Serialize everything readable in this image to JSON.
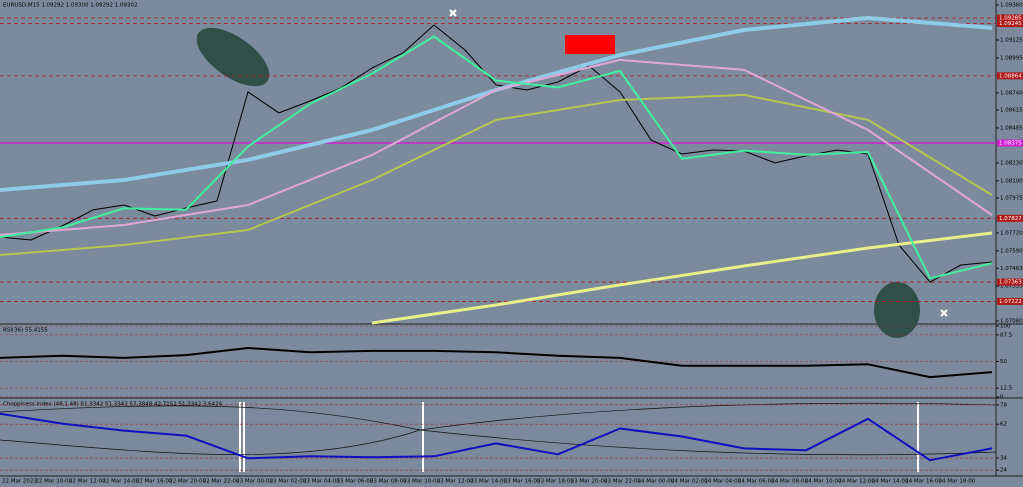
{
  "header": {
    "main": "EURUSD,M15 1.09292 1.09300 1.09292 1.09302",
    "rsi": "RSI(36) 55.4155",
    "chop": "Choppiness Index (48,1.48) 51.3342 51.3342 57.3848 42.7152 51.3342 3.6424"
  },
  "time_axis": [
    "22 Mar 2023",
    "22 Mar 10:00",
    "22 Mar 12:00",
    "22 Mar 14:00",
    "22 Mar 16:00",
    "22 Mar 20:00",
    "22 Mar 22:00",
    "23 Mar 00:00",
    "23 Mar 02:00",
    "23 Mar 04:00",
    "23 Mar 06:00",
    "23 Mar 08:00",
    "23 Mar 10:00",
    "23 Mar 12:00",
    "23 Mar 14:00",
    "23 Mar 16:00",
    "23 Mar 18:00",
    "23 Mar 20:00",
    "23 Mar 22:00",
    "24 Mar 00:00",
    "24 Mar 02:00",
    "24 Mar 04:00",
    "24 Mar 06:00",
    "24 Mar 08:00",
    "24 Mar 10:00",
    "24 Mar 12:00",
    "24 Mar 14:00",
    "24 Mar 16:00",
    "24 Mar 18:00"
  ],
  "chart_data": [
    {
      "type": "line",
      "ylim": [
        1.07065,
        1.09416
      ],
      "yticks": [
        {
          "value": 1.0938,
          "label": "1.09380"
        },
        {
          "value": 1.09125,
          "label": "1.09125"
        },
        {
          "value": 1.08995,
          "label": "1.08995"
        },
        {
          "value": 1.0874,
          "label": "1.08740"
        },
        {
          "value": 1.08615,
          "label": "1.08615"
        },
        {
          "value": 1.08485,
          "label": "1.08485"
        },
        {
          "value": 1.0823,
          "label": "1.08230"
        },
        {
          "value": 1.081,
          "label": "1.08100"
        },
        {
          "value": 1.07975,
          "label": "1.07975"
        },
        {
          "value": 1.0772,
          "label": "1.07720"
        },
        {
          "value": 1.0759,
          "label": "1.07590"
        },
        1.07463,
        1.07333,
        {
          "value": 1.0708,
          "label": "1.07080"
        }
      ],
      "levels": [
        {
          "value": 1.09285,
          "label": "1.09285",
          "color": "#b01818"
        },
        {
          "value": 1.09245,
          "label": "1.09245",
          "color": "#b01818"
        },
        {
          "value": 1.08864,
          "label": "1.08864",
          "color": "#b01818"
        },
        {
          "value": 1.08375,
          "label": "1.08375",
          "color": "#d020d0"
        },
        {
          "value": 1.07827,
          "label": "1.07827",
          "color": "#b01818"
        },
        {
          "value": 1.07363,
          "label": "1.07363",
          "color": "#b01818"
        },
        {
          "value": 1.07222,
          "label": "1.07222",
          "color": "#b01818"
        }
      ],
      "series": [
        {
          "color": "#000000",
          "width": 1,
          "values": [
            1.07691,
            1.07669,
            1.07771,
            1.07888,
            1.07924,
            1.07844,
            1.07902,
            1.07953,
            1.08747,
            1.08594,
            1.08681,
            1.08776,
            1.08921,
            1.09031,
            1.09234,
            1.09052,
            1.08798,
            1.08761,
            1.08819,
            1.08936,
            1.08747,
            1.08397,
            1.08295,
            1.08324,
            1.08317,
            1.0823,
            1.08281,
            1.08324,
            1.08295,
            1.07633,
            1.07363,
            1.07487,
            1.07509
          ]
        },
        {
          "color": "#8ecbe8",
          "width": 4,
          "values": [
            1.08033,
            1.08106,
            1.08252,
            1.0847,
            1.08761,
            1.09016,
            1.09198,
            1.09285,
            1.09213
          ]
        },
        {
          "color": "#b4c850",
          "width": 2,
          "values": [
            1.0756,
            1.07633,
            1.07742,
            1.08106,
            1.08543,
            1.08688,
            1.08725,
            1.08543,
            1.07997
          ]
        },
        {
          "color": "#e0a6d8",
          "width": 2,
          "values": [
            1.07706,
            1.07778,
            1.07924,
            1.08288,
            1.08761,
            1.0898,
            1.08907,
            1.0847,
            1.07851
          ]
        },
        {
          "color": "#e8f08a",
          "width": 3,
          "values": [
            null,
            null,
            null,
            1.07065,
            1.07196,
            1.07342,
            1.0748,
            1.07611,
            1.0772
          ]
        },
        {
          "color": "#40f0a0",
          "width": 2,
          "values": [
            1.0769,
            1.0776,
            1.079,
            1.0789,
            1.0835,
            1.0866,
            1.0888,
            1.0915,
            1.0883,
            1.0878,
            1.089,
            1.0826,
            1.0832,
            1.0829,
            1.0831,
            1.0739,
            1.075
          ]
        }
      ]
    },
    {
      "type": "line",
      "ylim": [
        0,
        100
      ],
      "yticks": [
        100,
        87.5,
        50,
        12.5,
        0
      ],
      "series": [
        {
          "color": "#000000",
          "width": 2,
          "values": [
            55,
            58,
            55,
            59,
            69,
            63,
            65,
            65,
            63,
            58,
            55,
            44,
            44,
            44,
            46,
            28,
            35
          ]
        }
      ]
    },
    {
      "type": "line",
      "ylim": [
        20,
        82
      ],
      "yticks": [
        78,
        62,
        34,
        24
      ],
      "series": [
        {
          "color": "#1010c0",
          "width": 2,
          "values": [
            70.6,
            62.5,
            56.7,
            52.6,
            33.8,
            35.5,
            34.6,
            35.5,
            46.1,
            37.1,
            58.4,
            51.8,
            42,
            40.4,
            66.5,
            32.2,
            42
          ]
        }
      ]
    }
  ]
}
